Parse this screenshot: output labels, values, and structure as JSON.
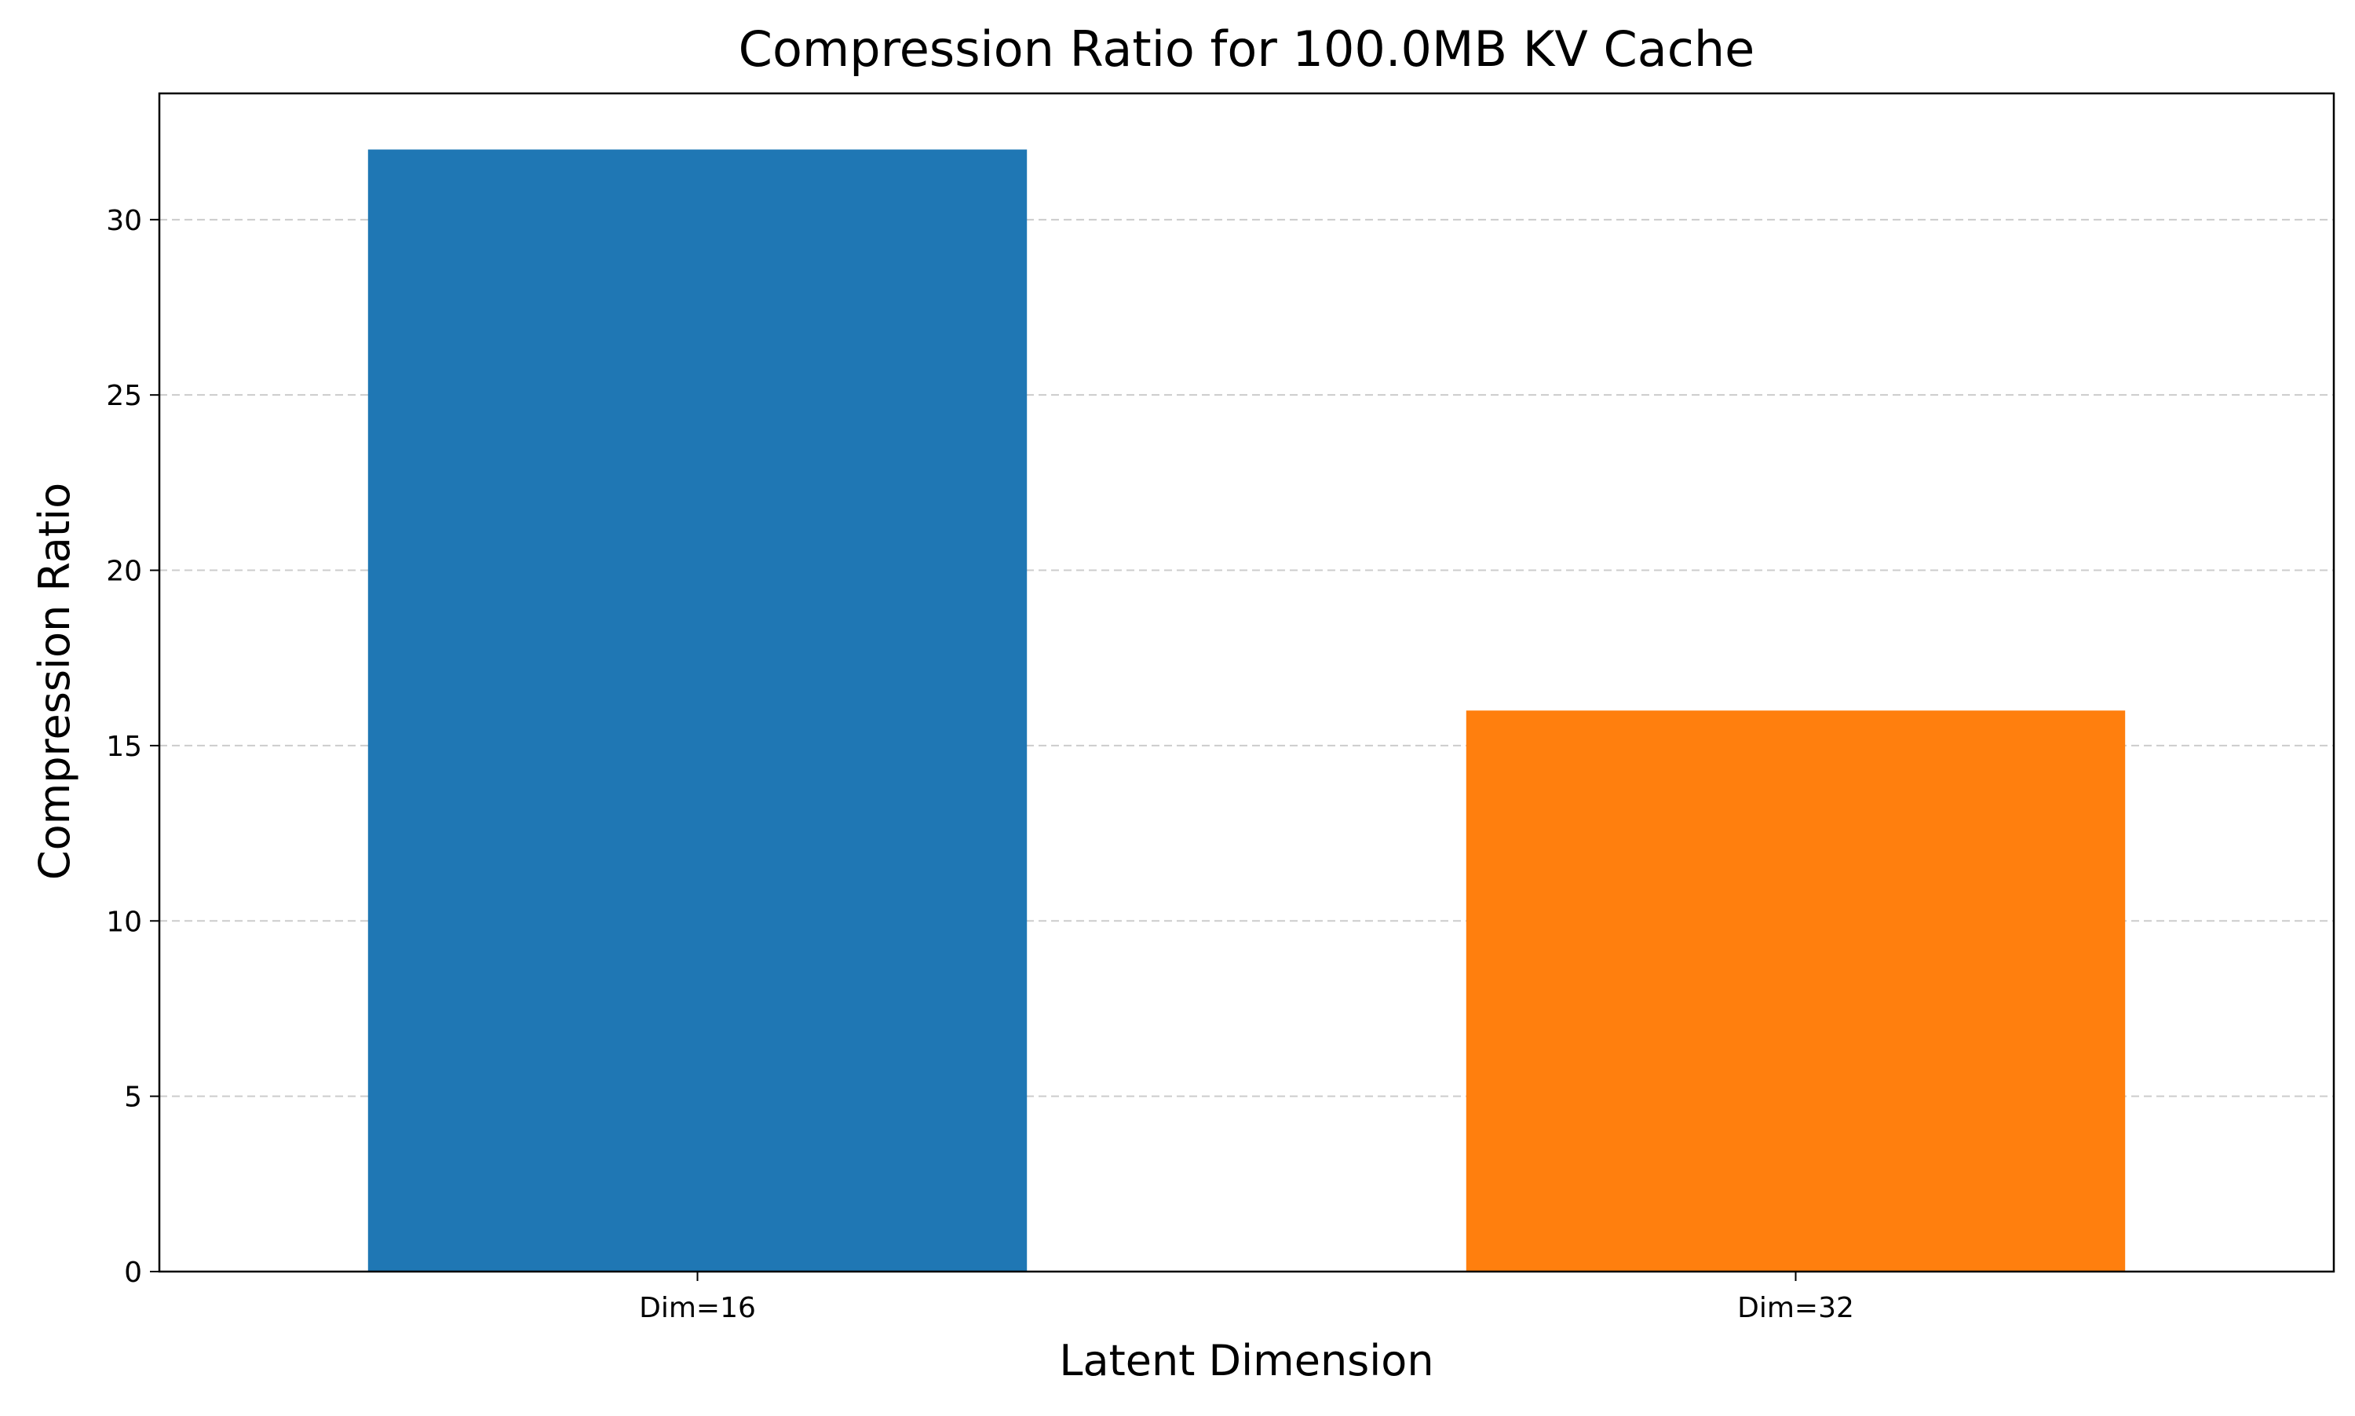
{
  "chart_data": {
    "type": "bar",
    "title": "Compression Ratio for 100.0MB KV Cache",
    "xlabel": "Latent Dimension",
    "ylabel": "Compression Ratio",
    "categories": [
      "Dim=16",
      "Dim=32"
    ],
    "values": [
      32.0,
      16.0
    ],
    "colors": [
      "#1f77b4",
      "#ff7f0e"
    ],
    "ylim": [
      0,
      33.6
    ],
    "yticks": [
      0,
      5,
      10,
      15,
      20,
      25,
      30
    ],
    "grid": {
      "axis": "y",
      "style": "dashed",
      "color": "#cccccc"
    },
    "legend": "none"
  }
}
